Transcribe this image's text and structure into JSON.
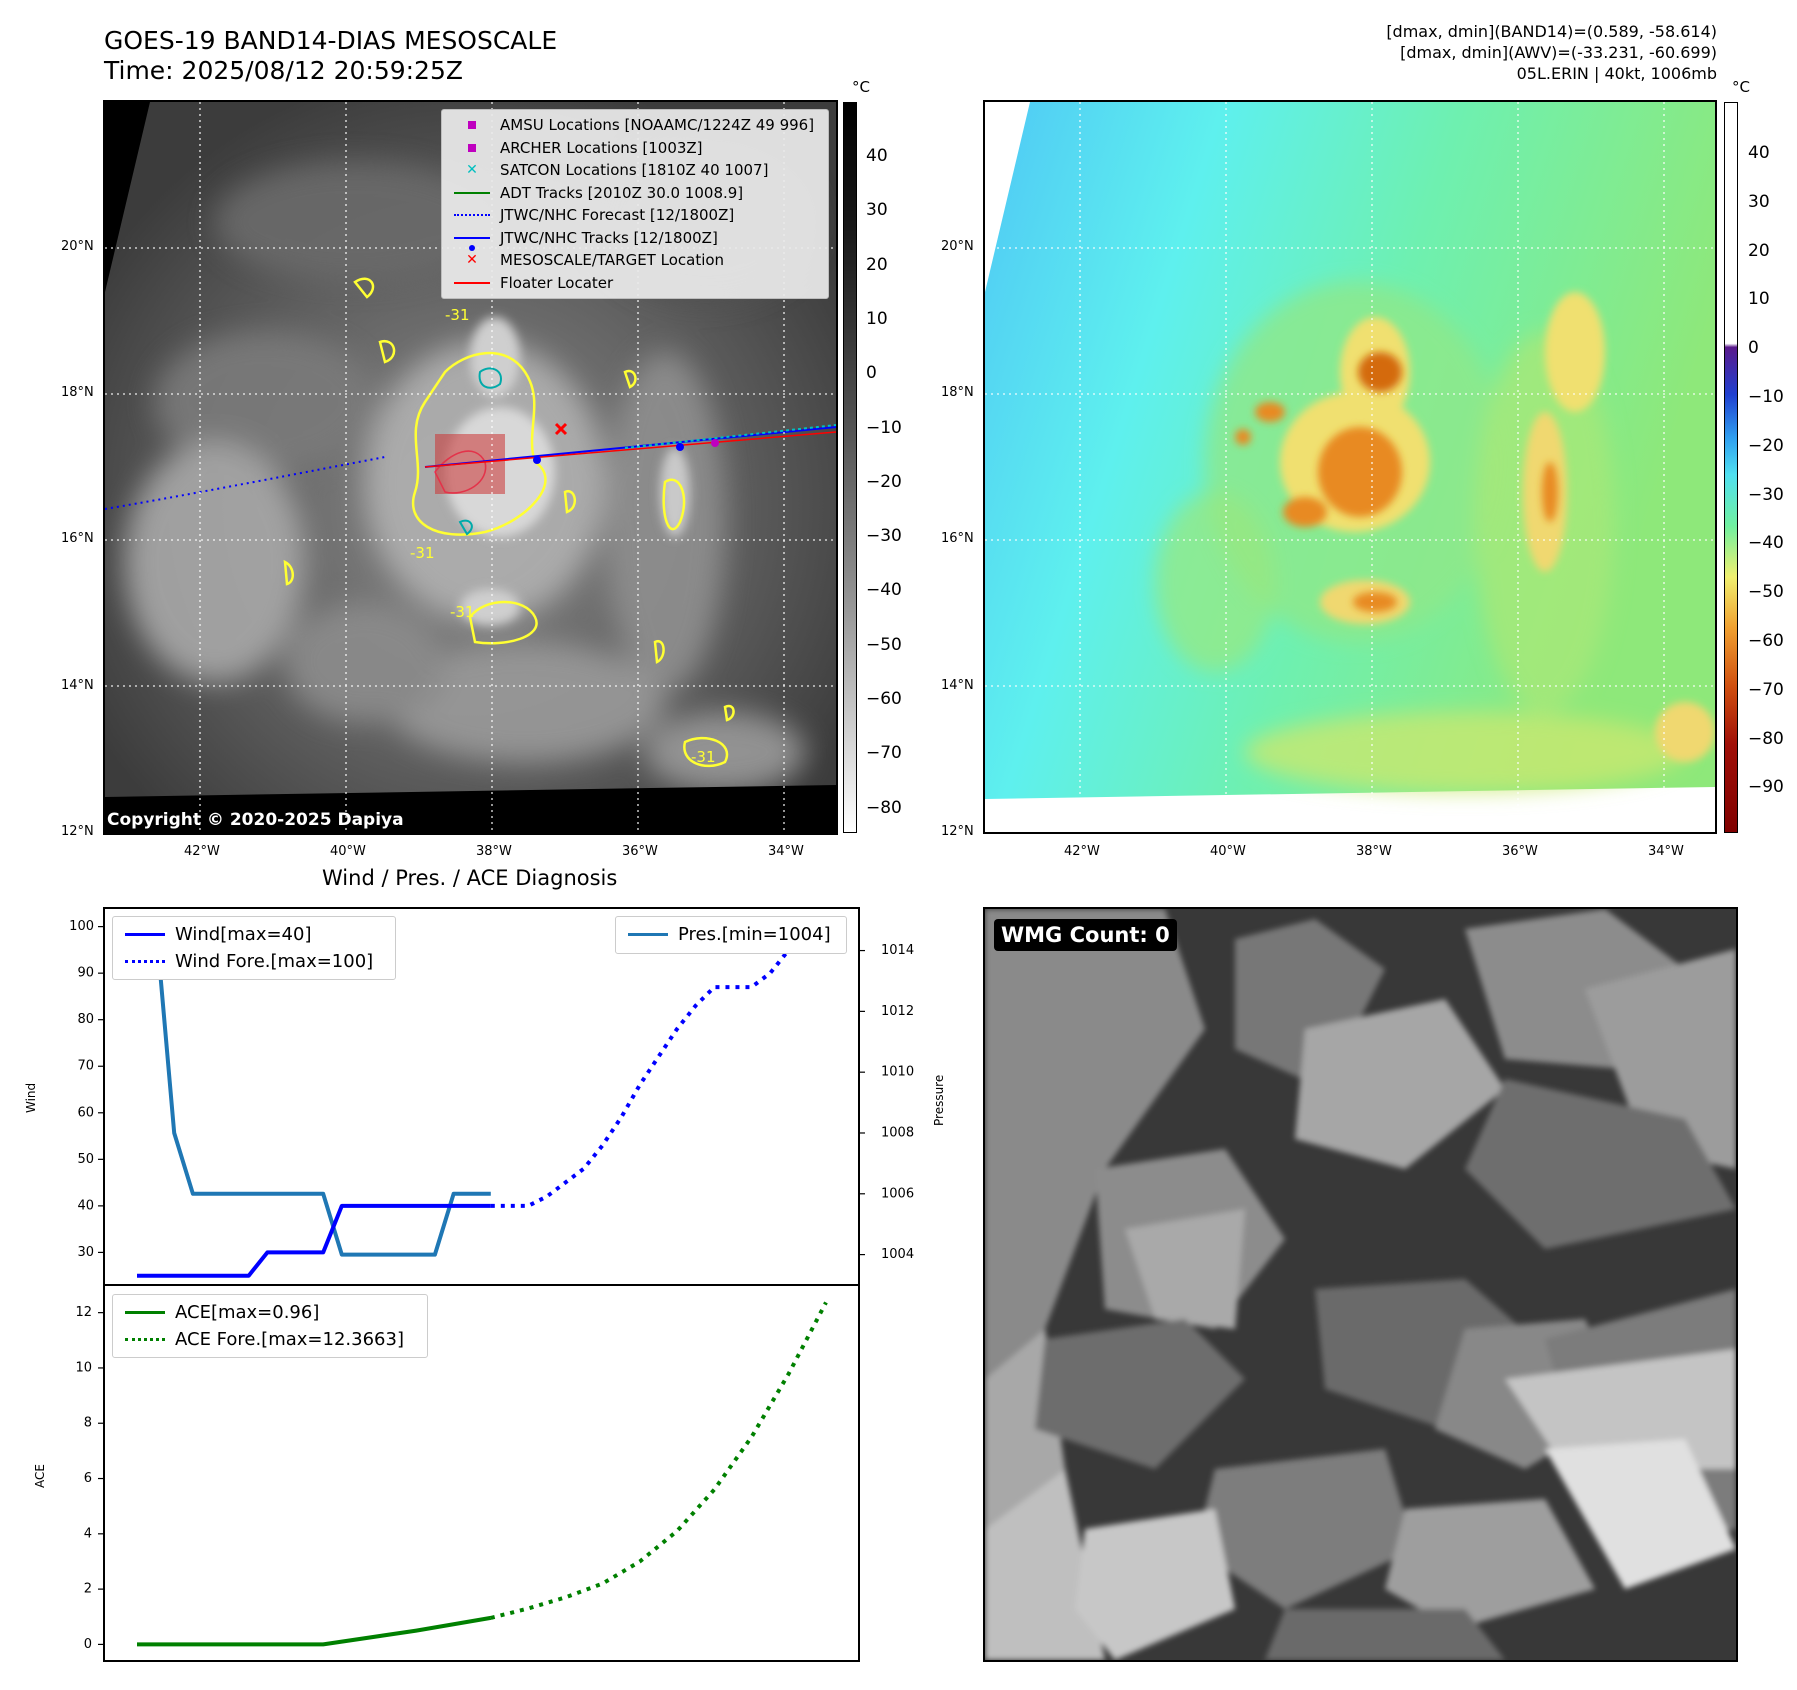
{
  "header": {
    "title_line1": "GOES-19 BAND14-DIAS MESOSCALE",
    "title_line2": "Time: 2025/08/12 20:59:25Z",
    "info_line1": "[dmax, dmin](BAND14)=(0.589, -58.614)",
    "info_line2": "[dmax, dmin](AWV)=(-33.231, -60.699)",
    "info_line3": "05L.ERIN | 40kt, 1006mb"
  },
  "map_axes": {
    "lat_labels": [
      "20°N",
      "18°N",
      "16°N",
      "14°N",
      "12°N"
    ],
    "lon_labels": [
      "42°W",
      "40°W",
      "38°W",
      "36°W",
      "34°W"
    ]
  },
  "ir_panel": {
    "colorbar_unit": "°C",
    "colorbar_ticks": [
      "40",
      "30",
      "20",
      "10",
      "0",
      "−10",
      "−20",
      "−30",
      "−40",
      "−50",
      "−60",
      "−70",
      "−80"
    ],
    "contour_label": "-31",
    "copyright": "Copyright © 2020-2025 Dapiya",
    "legend": [
      {
        "label": "AMSU Locations [NOAAMC/1224Z 49 996]",
        "symbol": "square",
        "color": "#bf00bf"
      },
      {
        "label": "ARCHER Locations [1003Z]",
        "symbol": "square",
        "color": "#bf00bf"
      },
      {
        "label": "SATCON Locations [1810Z 40 1007]",
        "symbol": "x",
        "color": "#00bfbf"
      },
      {
        "label": "ADT Tracks [2010Z 30.0 1008.9]",
        "symbol": "line",
        "color": "#008000"
      },
      {
        "label": "JTWC/NHC Forecast [12/1800Z]",
        "symbol": "dotted",
        "color": "#0000ff"
      },
      {
        "label": "JTWC/NHC Tracks [12/1800Z]",
        "symbol": "line-dot",
        "color": "#0000ff"
      },
      {
        "label": "MESOSCALE/TARGET Location",
        "symbol": "x",
        "color": "#ff0000"
      },
      {
        "label": "Floater Locater",
        "symbol": "line",
        "color": "#ff0000"
      }
    ]
  },
  "wv_panel": {
    "colorbar_unit": "°C",
    "colorbar_ticks": [
      "40",
      "30",
      "20",
      "10",
      "0",
      "−10",
      "−20",
      "−30",
      "−40",
      "−50",
      "−60",
      "−70",
      "−80",
      "−90"
    ]
  },
  "wmg_panel": {
    "label": "WMG Count: 0"
  },
  "diagnosis_title": "Wind / Pres. / ACE Diagnosis",
  "colors": {
    "wind": "#0000ff",
    "pressure": "#1f77b4",
    "ace": "#008000"
  },
  "chart_data": [
    {
      "type": "line",
      "title": "Wind / Pres. / ACE Diagnosis",
      "ylabel": "Wind",
      "ylabel_right": "Pressure",
      "ylim": [
        23,
        104
      ],
      "ylim_right": [
        1003.0,
        1015.4
      ],
      "yticks": [
        30,
        40,
        50,
        60,
        70,
        80,
        90,
        100
      ],
      "yticks_right": [
        1004,
        1006,
        1008,
        1010,
        1012,
        1014
      ],
      "legend_left_placement": "upper-left",
      "legend_right_placement": "upper-right",
      "series": [
        {
          "name": "Wind[max=40]",
          "axis": "left",
          "style": "solid",
          "color": "#0000ff",
          "x": [
            0,
            1,
            2,
            3,
            4,
            5,
            6,
            7,
            8,
            9,
            10,
            11,
            12,
            13,
            14,
            15,
            16,
            17,
            18,
            19
          ],
          "y": [
            25,
            25,
            25,
            25,
            25,
            25,
            25,
            30,
            30,
            30,
            30,
            40,
            40,
            40,
            40,
            40,
            40,
            40,
            40,
            40
          ]
        },
        {
          "name": "Wind Fore.[max=100]",
          "axis": "left",
          "style": "dotted",
          "color": "#0000ff",
          "x": [
            19,
            20,
            21,
            22,
            23,
            24,
            25,
            26,
            27,
            28,
            29,
            30,
            31,
            32,
            33,
            34,
            35,
            36,
            37
          ],
          "y": [
            40,
            40,
            40,
            42,
            45,
            48,
            53,
            59,
            66,
            72,
            78,
            83,
            87,
            87,
            87,
            90,
            95,
            98,
            100
          ]
        },
        {
          "name": "Pres.[min=1004]",
          "axis": "right",
          "style": "solid",
          "color": "#1f77b4",
          "x": [
            0,
            1,
            2,
            3,
            4,
            5,
            6,
            7,
            8,
            9,
            10,
            11,
            12,
            13,
            14,
            15,
            16,
            17,
            18,
            19
          ],
          "y": [
            1015,
            1015,
            1008,
            1006,
            1006,
            1006,
            1006,
            1006,
            1006,
            1006,
            1006,
            1004,
            1004,
            1004,
            1004,
            1004,
            1004,
            1006,
            1006,
            1006
          ]
        },
        {
          "name": "ACE[max=0.96]",
          "axis": "ace",
          "style": "solid",
          "color": "#008000",
          "x": [
            0,
            5,
            10,
            15,
            19
          ],
          "y": [
            0,
            0,
            0,
            0.5,
            0.96
          ]
        },
        {
          "name": "ACE Fore.[max=12.3663]",
          "axis": "ace",
          "style": "dotted",
          "color": "#008000",
          "x": [
            19,
            21,
            23,
            25,
            27,
            29,
            31,
            33,
            35,
            37
          ],
          "y": [
            0.96,
            1.3,
            1.7,
            2.2,
            3.0,
            4.1,
            5.6,
            7.5,
            9.8,
            12.37
          ]
        }
      ],
      "ace_ylabel": "ACE",
      "ace_ylim": [
        -0.6,
        13.0
      ],
      "ace_yticks": [
        0,
        2,
        4,
        6,
        8,
        10,
        12
      ]
    }
  ]
}
